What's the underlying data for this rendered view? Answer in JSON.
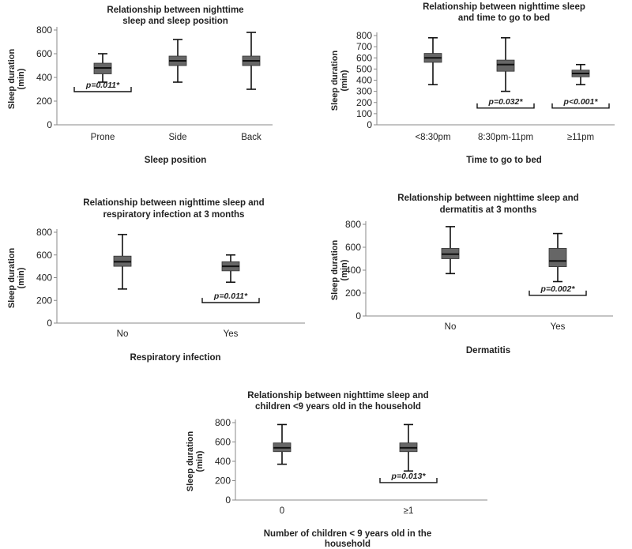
{
  "figure": {
    "accent_box": "#666666",
    "line_color": "#111111"
  },
  "chart_data": [
    {
      "type": "boxplot",
      "title": [
        "Relationship between nighttime",
        "sleep and sleep position"
      ],
      "ylabel": [
        "Sleep duration",
        "(min)"
      ],
      "xlabel": [
        "Sleep position"
      ],
      "ylim": [
        0,
        800
      ],
      "yticks": [
        0,
        200,
        400,
        600,
        800
      ],
      "categories": [
        "Prone",
        "Side",
        "Back"
      ],
      "boxes": [
        {
          "min": 360,
          "q1": 430,
          "median": 480,
          "q3": 520,
          "max": 600
        },
        {
          "min": 360,
          "q1": 500,
          "median": 540,
          "q3": 580,
          "max": 720
        },
        {
          "min": 300,
          "q1": 500,
          "median": 540,
          "q3": 580,
          "max": 780
        }
      ],
      "annotations": [
        {
          "text": "p=0.011*",
          "category_index": 0,
          "y_level": 280
        }
      ]
    },
    {
      "type": "boxplot",
      "title": [
        "Relationship between nighttime sleep",
        "and time to go to bed"
      ],
      "ylabel": [
        "Sleep duration",
        "(min)"
      ],
      "xlabel": [
        "Time to go to bed"
      ],
      "ylim": [
        0,
        800
      ],
      "yticks": [
        0,
        100,
        200,
        300,
        400,
        500,
        600,
        700,
        800
      ],
      "categories": [
        "<8:30pm",
        "8:30pm-11pm",
        "≥11pm"
      ],
      "boxes": [
        {
          "min": 360,
          "q1": 560,
          "median": 600,
          "q3": 640,
          "max": 780
        },
        {
          "min": 300,
          "q1": 480,
          "median": 540,
          "q3": 580,
          "max": 780
        },
        {
          "min": 360,
          "q1": 430,
          "median": 460,
          "q3": 490,
          "max": 540
        }
      ],
      "annotations": [
        {
          "text": "p=0.032*",
          "category_index": 1,
          "y_level": 150
        },
        {
          "text": "p<0.001*",
          "category_index": 2,
          "y_level": 150
        }
      ]
    },
    {
      "type": "boxplot",
      "title": [
        "Relationship between nighttime sleep and",
        "respiratory infection at 3 months"
      ],
      "ylabel": [
        "Sleep duration",
        "(min)"
      ],
      "xlabel": [
        "Respiratory infection"
      ],
      "ylim": [
        0,
        800
      ],
      "yticks": [
        0,
        200,
        400,
        600,
        800
      ],
      "categories": [
        "No",
        "Yes"
      ],
      "boxes": [
        {
          "min": 300,
          "q1": 500,
          "median": 540,
          "q3": 590,
          "max": 780
        },
        {
          "min": 360,
          "q1": 460,
          "median": 500,
          "q3": 540,
          "max": 600
        }
      ],
      "annotations": [
        {
          "text": "p=0.011*",
          "category_index": 1,
          "y_level": 180
        }
      ]
    },
    {
      "type": "boxplot",
      "title": [
        "Relationship between nighttime sleep and",
        "dermatitis at 3 months"
      ],
      "ylabel": [
        "Sleep duration",
        "(min)"
      ],
      "xlabel": [
        "Dermatitis"
      ],
      "ylim": [
        0,
        800
      ],
      "yticks": [
        0,
        200,
        400,
        600,
        800
      ],
      "categories": [
        "No",
        "Yes"
      ],
      "boxes": [
        {
          "min": 370,
          "q1": 500,
          "median": 540,
          "q3": 590,
          "max": 780
        },
        {
          "min": 300,
          "q1": 430,
          "median": 480,
          "q3": 590,
          "max": 720
        }
      ],
      "annotations": [
        {
          "text": "p=0.002*",
          "category_index": 1,
          "y_level": 180
        }
      ]
    },
    {
      "type": "boxplot",
      "title": [
        "Relationship between nighttime sleep and",
        "children <9 years old in the household"
      ],
      "ylabel": [
        "Sleep duration",
        "(min)"
      ],
      "xlabel": [
        "Number of children < 9 years old in the",
        "household"
      ],
      "ylim": [
        0,
        800
      ],
      "yticks": [
        0,
        200,
        400,
        600,
        800
      ],
      "categories": [
        "0",
        "≥1"
      ],
      "boxes": [
        {
          "min": 370,
          "q1": 500,
          "median": 540,
          "q3": 590,
          "max": 780
        },
        {
          "min": 300,
          "q1": 500,
          "median": 540,
          "q3": 590,
          "max": 780
        }
      ],
      "annotations": [
        {
          "text": "p=0.013*",
          "category_index": 1,
          "y_level": 180
        }
      ]
    }
  ]
}
